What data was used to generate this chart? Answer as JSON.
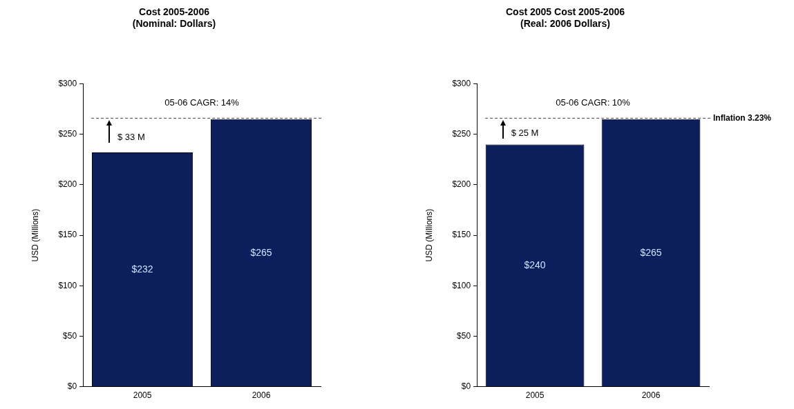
{
  "chart_data": [
    {
      "type": "bar",
      "title": "Cost 2005-2006",
      "subtitle": "(Nominal: Dollars)",
      "ylabel": "USD (Millions)",
      "categories": [
        "2005",
        "2006"
      ],
      "values": [
        232,
        265
      ],
      "value_labels": [
        "$232",
        "$265"
      ],
      "color": "#0c1f5c",
      "ylim": [
        0,
        300
      ],
      "yticks": [
        {
          "value": 0,
          "label": "$0"
        },
        {
          "value": 50,
          "label": "$50"
        },
        {
          "value": 100,
          "label": "$100"
        },
        {
          "value": 150,
          "label": "$150"
        },
        {
          "value": 200,
          "label": "$200"
        },
        {
          "value": 250,
          "label": "$250"
        },
        {
          "value": 300,
          "label": "$300"
        }
      ],
      "grid": false,
      "legend": false,
      "ref_lines": [
        {
          "axis": "y",
          "value": 266,
          "line_style": "dashed",
          "color": "#404040"
        }
      ],
      "annotations": [
        "05-06 CAGR: 14%",
        "$ 33 M"
      ]
    },
    {
      "type": "bar",
      "title": "Cost 2005 Cost 2005-2006",
      "subtitle": "(Real: 2006 Dollars)",
      "ylabel": "USD (Millions)",
      "categories": [
        "2005",
        "2006"
      ],
      "values": [
        240,
        265
      ],
      "value_labels": [
        "$240",
        "$265"
      ],
      "color": "#0c1f5c",
      "ylim": [
        0,
        300
      ],
      "yticks": [
        {
          "value": 0,
          "label": "$0"
        },
        {
          "value": 50,
          "label": "$50"
        },
        {
          "value": 100,
          "label": "$100"
        },
        {
          "value": 150,
          "label": "$150"
        },
        {
          "value": 200,
          "label": "$200"
        },
        {
          "value": 250,
          "label": "$250"
        },
        {
          "value": 300,
          "label": "$300"
        }
      ],
      "grid": false,
      "legend": false,
      "ref_lines": [
        {
          "axis": "y",
          "value": 266,
          "label": "Inflation 3.23%",
          "line_style": "dashed",
          "color": "#404040"
        }
      ],
      "annotations": [
        "05-06 CAGR: 10%",
        "$ 25 M"
      ]
    }
  ]
}
